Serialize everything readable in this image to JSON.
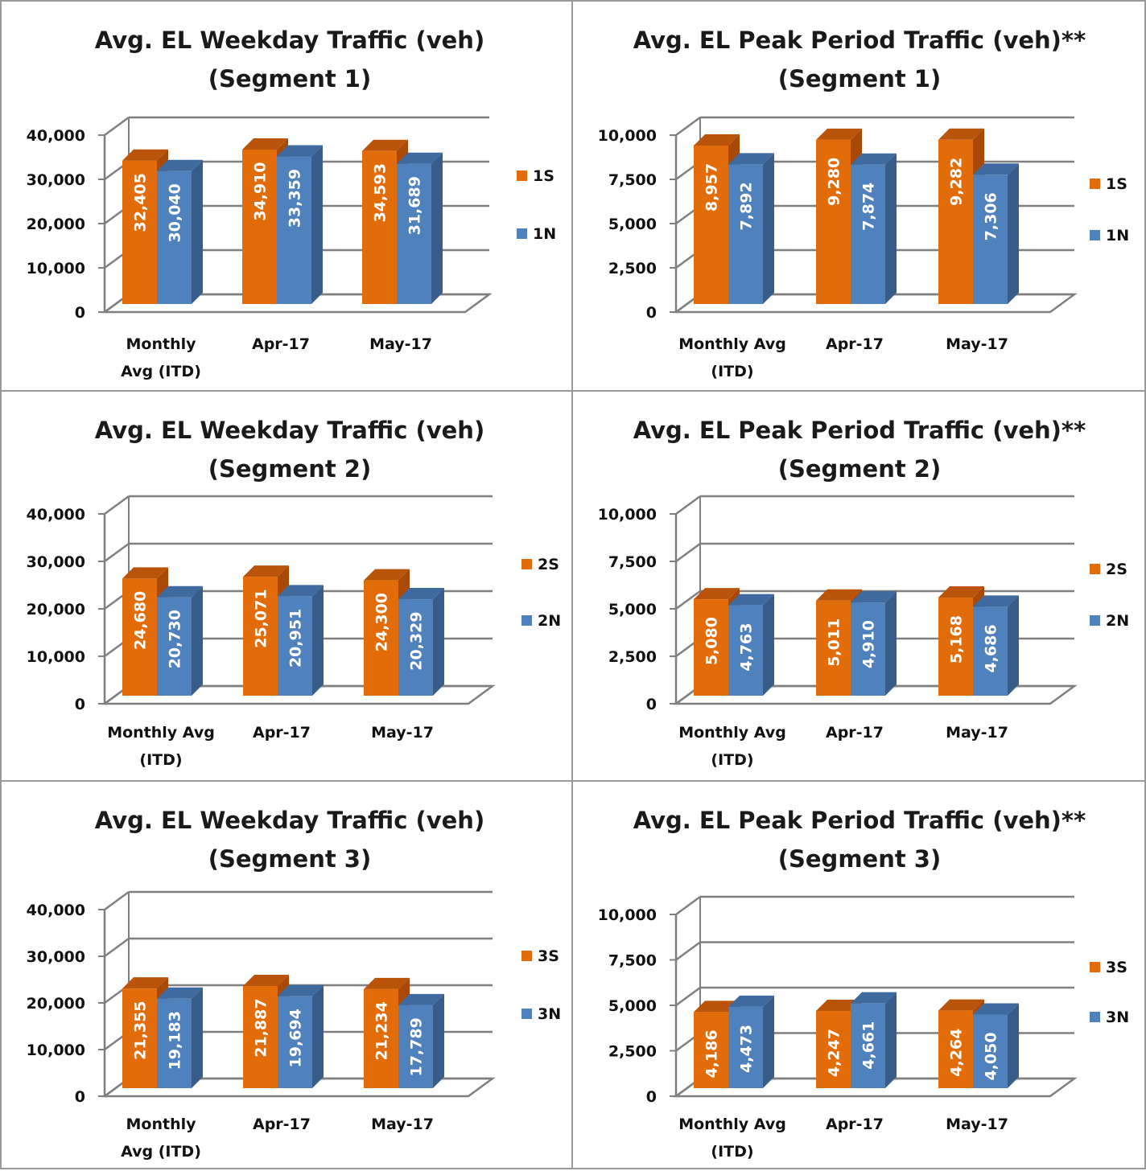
{
  "colors": {
    "S": "#E36C0A",
    "S_top": "#B9540A",
    "S_side": "#A84A06",
    "N": "#4F81BD",
    "N_top": "#3E6A9F",
    "N_side": "#385D8A",
    "grid": "#7f7f7f"
  },
  "chart_data": [
    {
      "type": "bar",
      "title": "Avg. EL Weekday Traffic (veh)",
      "subtitle": "(Segment 1)",
      "categories": [
        [
          "Monthly",
          "Avg (ITD)"
        ],
        [
          "Apr-17"
        ],
        [
          "May-17"
        ]
      ],
      "ylim": [
        0,
        40000
      ],
      "yticks": [
        "0",
        "10,000",
        "20,000",
        "30,000",
        "40,000"
      ],
      "series": [
        {
          "name": "1S",
          "values": [
            32405,
            34910,
            34593
          ],
          "labels": [
            "32,405",
            "34,910",
            "34,593"
          ]
        },
        {
          "name": "1N",
          "values": [
            30040,
            33359,
            31689
          ],
          "labels": [
            "30,040",
            "33,359",
            "31,689"
          ]
        }
      ],
      "legend": "right"
    },
    {
      "type": "bar",
      "title": "Avg. EL Peak Period Traffic (veh)**",
      "subtitle": "(Segment 1)",
      "categories": [
        [
          "Monthly Avg",
          "(ITD)"
        ],
        [
          "Apr-17"
        ],
        [
          "May-17"
        ]
      ],
      "ylim": [
        0,
        10000
      ],
      "yticks": [
        "0",
        "2,500",
        "5,000",
        "7,500",
        "10,000"
      ],
      "series": [
        {
          "name": "1S",
          "values": [
            8957,
            9280,
            9282
          ],
          "labels": [
            "8,957",
            "9,280",
            "9,282"
          ]
        },
        {
          "name": "1N",
          "values": [
            7892,
            7874,
            7306
          ],
          "labels": [
            "7,892",
            "7,874",
            "7,306"
          ]
        }
      ],
      "legend": "right"
    },
    {
      "type": "bar",
      "title": "Avg. EL Weekday Traffic (veh)",
      "subtitle": "(Segment 2)",
      "categories": [
        [
          "Monthly Avg",
          "(ITD)"
        ],
        [
          "Apr-17"
        ],
        [
          "May-17"
        ]
      ],
      "ylim": [
        0,
        40000
      ],
      "yticks": [
        "0",
        "10,000",
        "20,000",
        "30,000",
        "40,000"
      ],
      "series": [
        {
          "name": "2S",
          "values": [
            24680,
            25071,
            24300
          ],
          "labels": [
            "24,680",
            "25,071",
            "24,300"
          ]
        },
        {
          "name": "2N",
          "values": [
            20730,
            20951,
            20329
          ],
          "labels": [
            "20,730",
            "20,951",
            "20,329"
          ]
        }
      ],
      "legend": "right"
    },
    {
      "type": "bar",
      "title": "Avg. EL Peak Period Traffic (veh)**",
      "subtitle": "(Segment 2)",
      "categories": [
        [
          "Monthly Avg",
          "(ITD)"
        ],
        [
          "Apr-17"
        ],
        [
          "May-17"
        ]
      ],
      "ylim": [
        0,
        10000
      ],
      "yticks": [
        "0",
        "2,500",
        "5,000",
        "7,500",
        "10,000"
      ],
      "series": [
        {
          "name": "2S",
          "values": [
            5080,
            5011,
            5168
          ],
          "labels": [
            "5,080",
            "5,011",
            "5,168"
          ]
        },
        {
          "name": "2N",
          "values": [
            4763,
            4910,
            4686
          ],
          "labels": [
            "4,763",
            "4,910",
            "4,686"
          ]
        }
      ],
      "legend": "right"
    },
    {
      "type": "bar",
      "title": "Avg. EL Weekday Traffic (veh)",
      "subtitle": "(Segment 3)",
      "categories": [
        [
          "Monthly",
          "Avg (ITD)"
        ],
        [
          "Apr-17"
        ],
        [
          "May-17"
        ]
      ],
      "ylim": [
        0,
        40000
      ],
      "yticks": [
        "0",
        "10,000",
        "20,000",
        "30,000",
        "40,000"
      ],
      "series": [
        {
          "name": "3S",
          "values": [
            21355,
            21887,
            21234
          ],
          "labels": [
            "21,355",
            "21,887",
            "21,234"
          ]
        },
        {
          "name": "3N",
          "values": [
            19183,
            19694,
            17789
          ],
          "labels": [
            "19,183",
            "19,694",
            "17,789"
          ]
        }
      ],
      "legend": "right"
    },
    {
      "type": "bar",
      "title": "Avg. EL Peak Period Traffic (veh)**",
      "subtitle": "(Segment 3)",
      "categories": [
        [
          "Monthly Avg",
          "(ITD)"
        ],
        [
          "Apr-17"
        ],
        [
          "May-17"
        ]
      ],
      "ylim": [
        0,
        10000
      ],
      "yticks": [
        "0",
        "2,500",
        "5,000",
        "7,500",
        "10,000"
      ],
      "series": [
        {
          "name": "3S",
          "values": [
            4186,
            4247,
            4264
          ],
          "labels": [
            "4,186",
            "4,247",
            "4,264"
          ]
        },
        {
          "name": "3N",
          "values": [
            4473,
            4661,
            4050
          ],
          "labels": [
            "4,473",
            "4,661",
            "4,050"
          ]
        }
      ],
      "legend": "right"
    }
  ]
}
